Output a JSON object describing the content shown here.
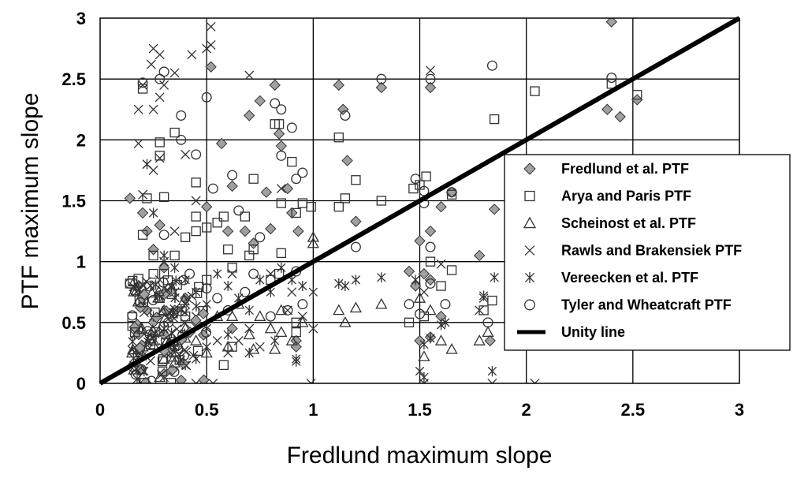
{
  "chart_data": {
    "type": "scatter",
    "xlabel": "Fredlund maximum slope",
    "ylabel": "PTF maximum slope",
    "xlim": [
      0,
      3
    ],
    "ylim": [
      0,
      3
    ],
    "xticks": [
      "0",
      "0.5",
      "1",
      "1.5",
      "2",
      "2.5",
      "3"
    ],
    "yticks": [
      "0",
      "0.5",
      "1",
      "1.5",
      "2",
      "2.5",
      "3"
    ],
    "grid": true,
    "legend_position": "right",
    "unity_line": {
      "name": "Unity line",
      "from": [
        0,
        0
      ],
      "to": [
        3,
        3
      ]
    },
    "series": [
      {
        "name": "Fredlund et al. PTF",
        "marker": "diamond",
        "points": [
          [
            0.14,
            1.52
          ],
          [
            0.2,
            1.4
          ],
          [
            0.22,
            1.25
          ],
          [
            0.25,
            1.1
          ],
          [
            0.28,
            1.3
          ],
          [
            0.3,
            0.95
          ],
          [
            0.18,
            0.8
          ],
          [
            0.22,
            0.6
          ],
          [
            0.25,
            0.5
          ],
          [
            0.3,
            0.4
          ],
          [
            0.35,
            0.6
          ],
          [
            0.4,
            0.7
          ],
          [
            0.45,
            0.5
          ],
          [
            0.5,
            1.45
          ],
          [
            0.52,
            2.6
          ],
          [
            0.57,
            1.97
          ],
          [
            0.6,
            1.25
          ],
          [
            0.62,
            1.62
          ],
          [
            0.68,
            1.25
          ],
          [
            0.7,
            2.2
          ],
          [
            0.72,
            1.15
          ],
          [
            0.75,
            2.32
          ],
          [
            0.78,
            1.57
          ],
          [
            0.8,
            1.27
          ],
          [
            0.82,
            2.45
          ],
          [
            0.84,
            2.05
          ],
          [
            0.85,
            1.95
          ],
          [
            0.88,
            1.6
          ],
          [
            0.9,
            1.4
          ],
          [
            0.93,
            1.25
          ],
          [
            1.12,
            2.45
          ],
          [
            1.14,
            2.25
          ],
          [
            1.16,
            1.83
          ],
          [
            1.2,
            1.33
          ],
          [
            1.32,
            2.43
          ],
          [
            1.55,
            2.43
          ],
          [
            1.55,
            1.25
          ],
          [
            1.6,
            1.45
          ],
          [
            1.65,
            1.57
          ],
          [
            1.85,
            1.43
          ],
          [
            2.4,
            2.97
          ],
          [
            2.38,
            2.25
          ],
          [
            2.44,
            2.19
          ],
          [
            2.52,
            2.33
          ],
          [
            1.5,
            1.17
          ],
          [
            1.78,
            1.05
          ],
          [
            1.52,
            0.9
          ],
          [
            1.45,
            0.92
          ],
          [
            1.48,
            0.8
          ],
          [
            1.55,
            0.85
          ],
          [
            1.5,
            0.35
          ],
          [
            1.55,
            0.38
          ],
          [
            1.83,
            0.35
          ],
          [
            1.6,
            0.55
          ],
          [
            0.62,
            0.45
          ],
          [
            0.92,
            0.35
          ],
          [
            0.92,
            0.3
          ]
        ]
      },
      {
        "name": "Arya and Paris PTF",
        "marker": "square",
        "points": [
          [
            0.2,
            2.42
          ],
          [
            0.28,
            1.98
          ],
          [
            0.28,
            1.87
          ],
          [
            0.22,
            1.52
          ],
          [
            0.3,
            1.53
          ],
          [
            0.2,
            1.22
          ],
          [
            0.25,
            1.05
          ],
          [
            0.35,
            1.05
          ],
          [
            0.4,
            1.2
          ],
          [
            0.45,
            1.25
          ],
          [
            0.5,
            1.28
          ],
          [
            0.55,
            1.32
          ],
          [
            0.45,
            1.65
          ],
          [
            0.3,
            0.9
          ],
          [
            0.28,
            0.7
          ],
          [
            0.4,
            0.55
          ],
          [
            0.35,
            2.06
          ],
          [
            0.45,
            1.37
          ],
          [
            0.58,
            1.37
          ],
          [
            0.6,
            1.1
          ],
          [
            0.62,
            0.95
          ],
          [
            0.68,
            1.37
          ],
          [
            0.7,
            1.05
          ],
          [
            0.72,
            1.1
          ],
          [
            0.72,
            1.68
          ],
          [
            0.82,
            2.13
          ],
          [
            0.84,
            2.13
          ],
          [
            0.85,
            1.48
          ],
          [
            0.9,
            1.82
          ],
          [
            0.92,
            1.4
          ],
          [
            0.95,
            1.48
          ],
          [
            0.99,
            1.45
          ],
          [
            0.85,
            1.07
          ],
          [
            0.84,
            0.9
          ],
          [
            0.8,
            0.85
          ],
          [
            1.12,
            1.45
          ],
          [
            1.15,
            1.52
          ],
          [
            1.12,
            2.02
          ],
          [
            1.2,
            1.67
          ],
          [
            1.32,
            1.5
          ],
          [
            1.47,
            1.6
          ],
          [
            1.5,
            1.63
          ],
          [
            1.53,
            1.7
          ],
          [
            1.55,
            1.0
          ],
          [
            1.52,
            0.55
          ],
          [
            1.45,
            0.5
          ],
          [
            1.6,
            0.8
          ],
          [
            1.65,
            0.93
          ],
          [
            1.65,
            1.55
          ],
          [
            1.8,
            0.6
          ],
          [
            1.84,
            0.68
          ],
          [
            1.85,
            2.17
          ],
          [
            2.04,
            2.4
          ],
          [
            2.4,
            2.46
          ],
          [
            2.52,
            2.37
          ],
          [
            0.14,
            0.82
          ],
          [
            0.18,
            0.86
          ],
          [
            0.25,
            0.9
          ],
          [
            0.5,
            0.85
          ],
          [
            0.62,
            0.3
          ],
          [
            0.58,
            0.15
          ],
          [
            0.92,
            0.5
          ],
          [
            0.92,
            0.42
          ]
        ]
      },
      {
        "name": "Scheinost et al. PTF",
        "marker": "triangle",
        "points": [
          [
            0.15,
            0.25
          ],
          [
            0.2,
            0.3
          ],
          [
            0.25,
            0.35
          ],
          [
            0.28,
            0.05
          ],
          [
            0.3,
            0.2
          ],
          [
            0.35,
            0.25
          ],
          [
            0.4,
            0.45
          ],
          [
            0.45,
            0.35
          ],
          [
            0.5,
            0.25
          ],
          [
            0.55,
            0.55
          ],
          [
            0.6,
            0.3
          ],
          [
            0.65,
            0.65
          ],
          [
            0.7,
            0.4
          ],
          [
            0.75,
            0.55
          ],
          [
            0.8,
            0.45
          ],
          [
            0.85,
            0.6
          ],
          [
            0.9,
            0.35
          ],
          [
            0.95,
            0.5
          ],
          [
            1.0,
            1.2
          ],
          [
            1.0,
            1.15
          ],
          [
            1.12,
            0.6
          ],
          [
            1.15,
            0.5
          ],
          [
            1.2,
            0.62
          ],
          [
            1.32,
            0.65
          ],
          [
            1.5,
            0.7
          ],
          [
            1.52,
            0.22
          ],
          [
            1.55,
            0.6
          ],
          [
            1.6,
            0.35
          ],
          [
            1.65,
            0.28
          ],
          [
            1.78,
            0.35
          ],
          [
            1.82,
            0.42
          ],
          [
            0.3,
            0.6
          ],
          [
            0.3,
            0.75
          ],
          [
            0.62,
            0.55
          ],
          [
            0.72,
            0.28
          ],
          [
            0.82,
            0.28
          ],
          [
            0.85,
            0.42
          ]
        ]
      },
      {
        "name": "Rawls and Brakensiek PTF",
        "marker": "x",
        "points": [
          [
            0.18,
            2.25
          ],
          [
            0.2,
            2.45
          ],
          [
            0.24,
            2.62
          ],
          [
            0.25,
            2.75
          ],
          [
            0.28,
            2.7
          ],
          [
            0.28,
            2.35
          ],
          [
            0.3,
            2.45
          ],
          [
            0.25,
            2.25
          ],
          [
            0.35,
            2.55
          ],
          [
            0.43,
            2.7
          ],
          [
            0.5,
            2.75
          ],
          [
            0.52,
            2.93
          ],
          [
            0.52,
            2.78
          ],
          [
            0.7,
            2.53
          ],
          [
            0.18,
            1.97
          ],
          [
            0.2,
            1.55
          ],
          [
            0.22,
            1.8
          ],
          [
            0.25,
            1.75
          ],
          [
            0.28,
            1.85
          ],
          [
            0.4,
            1.88
          ],
          [
            0.45,
            1.5
          ],
          [
            0.35,
            1.25
          ],
          [
            0.3,
            1.0
          ],
          [
            0.28,
            0.85
          ],
          [
            0.35,
            0.75
          ],
          [
            0.4,
            0.65
          ],
          [
            0.45,
            0.55
          ],
          [
            0.5,
            0.45
          ],
          [
            0.55,
            0.35
          ],
          [
            0.6,
            0.25
          ],
          [
            0.65,
            0.35
          ],
          [
            0.7,
            0.45
          ],
          [
            0.75,
            0.3
          ],
          [
            0.8,
            0.9
          ],
          [
            0.85,
            1.6
          ],
          [
            0.9,
            0.75
          ],
          [
            0.95,
            0.55
          ],
          [
            1.0,
            0.45
          ],
          [
            0.45,
            0.0
          ],
          [
            0.53,
            0.0
          ],
          [
            0.99,
            0.0
          ],
          [
            1.52,
            0.0
          ],
          [
            1.84,
            0.0
          ],
          [
            2.04,
            0.0
          ],
          [
            1.55,
            2.57
          ],
          [
            1.52,
            0.75
          ],
          [
            1.78,
            0.6
          ],
          [
            1.8,
            0.7
          ],
          [
            1.6,
            0.98
          ],
          [
            0.62,
            0.9
          ],
          [
            0.88,
            0.6
          ],
          [
            0.2,
            0.1
          ],
          [
            0.3,
            0.05
          ]
        ]
      },
      {
        "name": "Vereecken et al. PTF",
        "marker": "asterisk",
        "points": [
          [
            0.22,
            1.8
          ],
          [
            0.25,
            1.4
          ],
          [
            0.3,
            1.05
          ],
          [
            0.35,
            0.95
          ],
          [
            0.4,
            0.85
          ],
          [
            0.45,
            0.75
          ],
          [
            0.5,
            0.65
          ],
          [
            0.55,
            0.9
          ],
          [
            0.6,
            0.8
          ],
          [
            0.65,
            0.7
          ],
          [
            0.7,
            0.6
          ],
          [
            0.75,
            0.85
          ],
          [
            0.8,
            0.75
          ],
          [
            0.85,
            0.95
          ],
          [
            0.9,
            0.85
          ],
          [
            0.95,
            0.8
          ],
          [
            1.0,
            0.75
          ],
          [
            1.12,
            0.82
          ],
          [
            1.15,
            0.8
          ],
          [
            1.2,
            0.85
          ],
          [
            1.32,
            0.87
          ],
          [
            1.48,
            0.85
          ],
          [
            1.52,
            0.32
          ],
          [
            1.55,
            0.37
          ],
          [
            1.6,
            0.48
          ],
          [
            1.62,
            0.5
          ],
          [
            1.8,
            0.72
          ],
          [
            1.85,
            0.87
          ],
          [
            1.5,
            0.1
          ],
          [
            1.52,
            0.05
          ],
          [
            1.84,
            0.1
          ],
          [
            0.4,
            0.15
          ],
          [
            0.45,
            0.2
          ],
          [
            0.5,
            0.3
          ],
          [
            0.6,
            0.4
          ],
          [
            0.7,
            0.25
          ],
          [
            0.82,
            0.35
          ],
          [
            0.92,
            0.2
          ],
          [
            0.92,
            0.18
          ],
          [
            0.35,
            0.3
          ],
          [
            0.25,
            0.55
          ],
          [
            0.3,
            0.45
          ]
        ]
      },
      {
        "name": "Tyler and Wheatcraft PTF",
        "marker": "circle",
        "points": [
          [
            0.2,
            2.47
          ],
          [
            0.28,
            2.5
          ],
          [
            0.3,
            2.56
          ],
          [
            0.38,
            2.2
          ],
          [
            0.38,
            2.0
          ],
          [
            0.45,
            1.88
          ],
          [
            0.5,
            2.35
          ],
          [
            0.53,
            1.6
          ],
          [
            0.62,
            1.71
          ],
          [
            0.65,
            1.42
          ],
          [
            0.75,
            1.2
          ],
          [
            0.82,
            2.3
          ],
          [
            0.85,
            1.87
          ],
          [
            0.85,
            2.25
          ],
          [
            0.9,
            2.1
          ],
          [
            0.92,
            1.68
          ],
          [
            0.95,
            1.73
          ],
          [
            1.15,
            2.2
          ],
          [
            1.2,
            1.12
          ],
          [
            1.32,
            2.5
          ],
          [
            1.48,
            1.68
          ],
          [
            1.52,
            1.58
          ],
          [
            1.55,
            2.5
          ],
          [
            1.52,
            1.48
          ],
          [
            1.55,
            1.12
          ],
          [
            1.65,
            1.57
          ],
          [
            1.84,
            2.61
          ],
          [
            2.4,
            2.51
          ],
          [
            0.14,
            0.82
          ],
          [
            0.3,
            1.22
          ],
          [
            0.42,
            0.9
          ],
          [
            0.5,
            0.78
          ],
          [
            0.55,
            0.7
          ],
          [
            0.6,
            0.6
          ],
          [
            0.68,
            0.75
          ],
          [
            0.72,
            0.9
          ],
          [
            0.8,
            0.55
          ],
          [
            0.88,
            0.6
          ],
          [
            0.92,
            0.92
          ],
          [
            0.95,
            0.65
          ],
          [
            1.45,
            0.65
          ],
          [
            1.5,
            0.57
          ],
          [
            1.55,
            0.82
          ],
          [
            1.62,
            0.65
          ],
          [
            1.82,
            0.5
          ],
          [
            0.32,
            0.5
          ]
        ]
      }
    ],
    "dense_cluster": {
      "x_range": [
        0.15,
        0.5
      ],
      "y_range": [
        0.0,
        0.85
      ],
      "count": 160
    }
  }
}
